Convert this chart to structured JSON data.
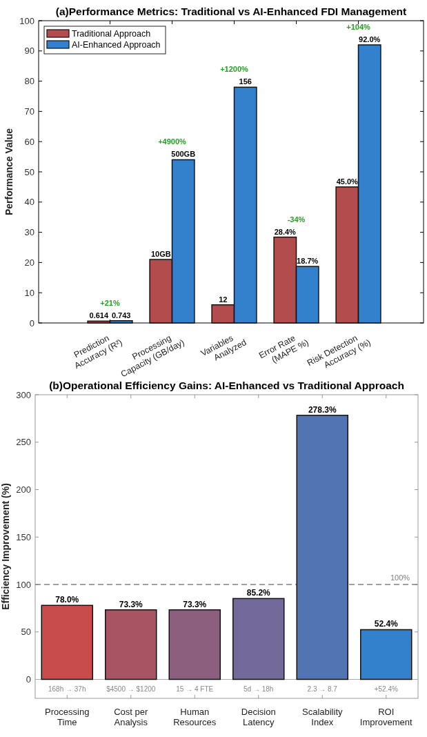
{
  "chart_data": [
    {
      "type": "bar",
      "title": "(a)Performance Metrics: Traditional vs AI-Enhanced FDI Management",
      "ylabel": "Performance Value",
      "categories": [
        "Prediction\nAccuracy (R²)",
        "Processing\nCapacity (GB/day)",
        "Variables\nAnalyzed",
        "Error Rate\n(MAPE %)",
        "Risk Detection\nAccuracy (%)"
      ],
      "series": [
        {
          "name": "Traditional Approach",
          "color": "#b34d4d",
          "values": [
            0.614,
            21,
            6,
            28.4,
            45
          ],
          "value_labels": [
            "0.614",
            null,
            null,
            "28.4%",
            "45.0%"
          ]
        },
        {
          "name": "AI-Enhanced Approach",
          "color": "#3380cc",
          "values": [
            0.743,
            54,
            78,
            18.7,
            92
          ],
          "value_labels": [
            "0.743",
            null,
            null,
            "18.7%",
            "92.0%"
          ]
        }
      ],
      "ylim": [
        0,
        100
      ],
      "yticks": [
        0,
        10,
        20,
        30,
        40,
        50,
        60,
        70,
        80,
        90,
        100
      ],
      "legend": "top left",
      "annotations": [
        "+21%",
        "+4900%",
        "+1200%",
        "-34%",
        "+104%",
        "10GB",
        "12",
        "500GB",
        "156"
      ]
    },
    {
      "type": "bar",
      "title": "(b)Operational Efficiency Gains: AI-Enhanced vs Traditional Approach",
      "ylabel": "Efficiency Improvement (%)",
      "categories": [
        "Processing\nTime",
        "Cost per\nAnalysis",
        "Human\nResources",
        "Decision\nLatency",
        "Scalability\nIndex",
        "ROI\nImprovement"
      ],
      "values": [
        78,
        73.3,
        73.3,
        85.2,
        278.3,
        52.4
      ],
      "colors": [
        "#c94c4c",
        "#a85563",
        "#8c5f7e",
        "#736a9a",
        "#5174b3",
        "#3380cc"
      ],
      "value_labels": [
        "78.0%",
        "73.3%",
        "73.3%",
        "85.2%",
        "278.3%",
        "52.4%"
      ],
      "ylim": [
        -20,
        300
      ],
      "yticks": [
        0,
        50,
        100,
        150,
        200,
        250,
        300
      ],
      "ref_lines": [
        {
          "axis": "y",
          "value": 100,
          "label": "100%",
          "color": "#808080",
          "line_style": "dashed"
        }
      ],
      "annotations": [
        "168h → 37h",
        "$4500 → $1200",
        "15 → 4 FTE",
        "5d → 18h",
        "2.3 → 8.7",
        "+52.4%"
      ]
    }
  ]
}
